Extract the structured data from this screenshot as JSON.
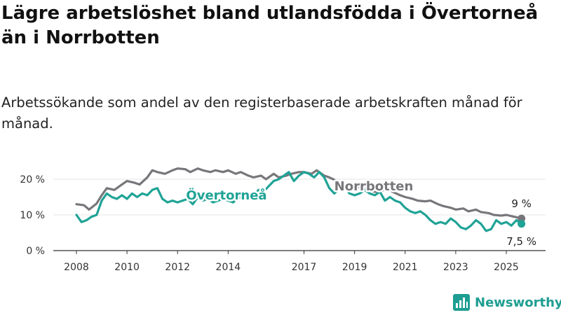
{
  "title": "Lägre arbetslöshet bland utlandsfödda i Övertorneå än i Norrbotten",
  "subtitle": "Arbetssökande som andel av den registerbaserade arbetskraften månad för månad.",
  "brand": "Newsworthy",
  "colors": {
    "overtornea": "#1fa396",
    "norrbotten": "#77767a",
    "axis": "#333333",
    "grid": "#e4e4e4"
  },
  "chart_data": {
    "type": "line",
    "x_unit": "year",
    "y_unit": "%",
    "ylim": [
      0,
      25
    ],
    "xlim": [
      2007.6,
      2025.9
    ],
    "y_ticks": [
      {
        "value": 0,
        "label": "0 %"
      },
      {
        "value": 10,
        "label": "10 %"
      },
      {
        "value": 20,
        "label": "20 %"
      }
    ],
    "x_ticks": [
      {
        "value": 2008,
        "label": "2008"
      },
      {
        "value": 2010,
        "label": "2010"
      },
      {
        "value": 2012,
        "label": "2012"
      },
      {
        "value": 2014,
        "label": "2014"
      },
      {
        "value": 2017,
        "label": "2017"
      },
      {
        "value": 2019,
        "label": "2019"
      },
      {
        "value": 2021,
        "label": "2021"
      },
      {
        "value": 2023,
        "label": "2023"
      },
      {
        "value": 2025,
        "label": "2025"
      }
    ],
    "grid": "horizontal",
    "series": [
      {
        "name": "Norrbotten",
        "key": "norrbotten",
        "end_label": "9 %",
        "x": [
          2008.0,
          2008.3,
          2008.5,
          2008.8,
          2009.0,
          2009.2,
          2009.5,
          2009.8,
          2010.0,
          2010.3,
          2010.5,
          2010.8,
          2011.0,
          2011.2,
          2011.5,
          2011.8,
          2012.0,
          2012.3,
          2012.5,
          2012.8,
          2013.0,
          2013.3,
          2013.5,
          2013.8,
          2014.0,
          2014.3,
          2014.5,
          2014.8,
          2015.0,
          2015.3,
          2015.5,
          2015.8,
          2016.0,
          2016.3,
          2016.5,
          2016.8,
          2017.0,
          2017.3,
          2017.5,
          2017.8,
          2018.0,
          2018.3,
          2018.5,
          2018.8,
          2019.0,
          2019.3,
          2019.5,
          2019.8,
          2020.0,
          2020.3,
          2020.5,
          2020.8,
          2021.0,
          2021.3,
          2021.5,
          2021.8,
          2022.0,
          2022.3,
          2022.5,
          2022.8,
          2023.0,
          2023.3,
          2023.5,
          2023.8,
          2024.0,
          2024.3,
          2024.5,
          2024.8,
          2025.0,
          2025.3,
          2025.6
        ],
        "y": [
          13.0,
          12.7,
          11.5,
          13.2,
          15.5,
          17.5,
          17.0,
          18.5,
          19.5,
          19.0,
          18.5,
          20.5,
          22.5,
          22.0,
          21.5,
          22.5,
          23.0,
          22.8,
          22.0,
          23.0,
          22.5,
          22.0,
          22.5,
          22.0,
          22.5,
          21.5,
          22.0,
          21.0,
          20.5,
          21.0,
          20.0,
          21.5,
          20.5,
          21.0,
          21.5,
          22.0,
          22.0,
          21.5,
          22.5,
          21.0,
          20.5,
          19.5,
          19.0,
          18.5,
          18.0,
          17.5,
          17.0,
          16.5,
          16.5,
          17.5,
          16.5,
          15.5,
          15.0,
          14.5,
          14.0,
          13.8,
          14.0,
          13.0,
          12.5,
          12.0,
          11.5,
          11.8,
          11.0,
          11.5,
          10.8,
          10.5,
          10.0,
          9.8,
          10.0,
          9.5,
          9.0
        ]
      },
      {
        "name": "Övertorneå",
        "key": "overtornea",
        "end_label": "7,5 %",
        "x": [
          2008.0,
          2008.2,
          2008.4,
          2008.6,
          2008.8,
          2009.0,
          2009.2,
          2009.4,
          2009.6,
          2009.8,
          2010.0,
          2010.2,
          2010.4,
          2010.6,
          2010.8,
          2011.0,
          2011.2,
          2011.4,
          2011.6,
          2011.8,
          2012.0,
          2012.2,
          2012.4,
          2012.6,
          2012.8,
          2013.0,
          2013.2,
          2013.4,
          2013.6,
          2013.8,
          2014.0,
          2014.2,
          2014.4,
          2014.6,
          2014.8,
          2015.0,
          2015.2,
          2015.4,
          2015.6,
          2015.8,
          2016.0,
          2016.2,
          2016.4,
          2016.6,
          2016.8,
          2017.0,
          2017.2,
          2017.4,
          2017.6,
          2017.8,
          2018.0,
          2018.2,
          2018.4,
          2018.6,
          2018.8,
          2019.0,
          2019.2,
          2019.4,
          2019.6,
          2019.8,
          2020.0,
          2020.2,
          2020.4,
          2020.6,
          2020.8,
          2021.0,
          2021.2,
          2021.4,
          2021.6,
          2021.8,
          2022.0,
          2022.2,
          2022.4,
          2022.6,
          2022.8,
          2023.0,
          2023.2,
          2023.4,
          2023.6,
          2023.8,
          2024.0,
          2024.2,
          2024.4,
          2024.6,
          2024.8,
          2025.0,
          2025.2,
          2025.4,
          2025.6
        ],
        "y": [
          10.0,
          8.0,
          8.5,
          9.5,
          10.0,
          14.0,
          16.0,
          15.0,
          14.5,
          15.5,
          14.5,
          16.0,
          15.0,
          16.0,
          15.5,
          17.0,
          17.5,
          14.5,
          13.5,
          14.0,
          13.5,
          14.0,
          14.5,
          13.0,
          15.0,
          14.0,
          14.5,
          13.5,
          14.0,
          14.5,
          14.0,
          13.5,
          15.0,
          14.5,
          16.0,
          15.0,
          17.0,
          16.5,
          18.0,
          19.5,
          20.0,
          21.0,
          22.0,
          19.5,
          21.0,
          22.0,
          21.5,
          20.5,
          22.0,
          20.5,
          17.5,
          16.0,
          17.5,
          18.0,
          16.0,
          15.5,
          16.0,
          17.0,
          16.0,
          15.5,
          16.5,
          14.0,
          15.0,
          14.0,
          13.5,
          12.0,
          11.0,
          10.5,
          11.0,
          10.0,
          8.5,
          7.5,
          8.0,
          7.5,
          9.0,
          8.0,
          6.5,
          6.0,
          7.0,
          8.5,
          7.5,
          5.5,
          6.0,
          8.5,
          7.5,
          8.0,
          7.0,
          8.5,
          7.5
        ]
      }
    ]
  }
}
